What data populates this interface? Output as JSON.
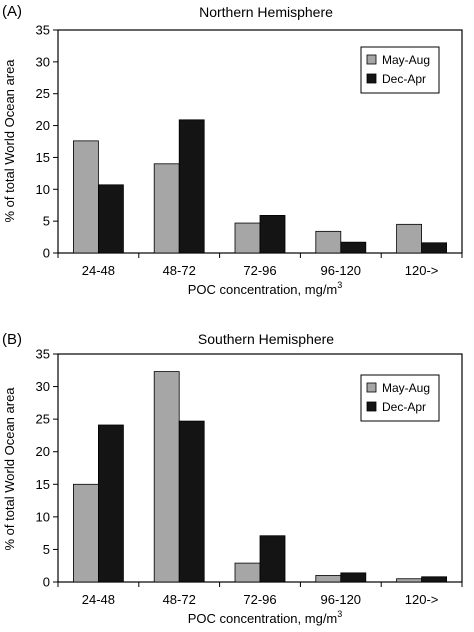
{
  "colors": {
    "may_aug": "#a6a6a6",
    "dec_apr": "#141414",
    "axis": "#000000"
  },
  "chart_data": [
    {
      "type": "bar",
      "panel_label": "(A)",
      "title": "Northern Hemisphere",
      "xlabel": "POC concentration, mg/m",
      "xlabel_sup": "3",
      "ylabel": "% of total World Ocean area",
      "ylim": [
        0,
        35
      ],
      "yticks": [
        "0",
        "5",
        "10",
        "15",
        "20",
        "25",
        "30",
        "35"
      ],
      "categories": [
        "24-48",
        "48-72",
        "72-96",
        "96-120",
        "120->"
      ],
      "series": [
        {
          "name": "May-Aug",
          "values": [
            17.6,
            14.0,
            4.7,
            3.4,
            4.5
          ]
        },
        {
          "name": "Dec-Apr",
          "values": [
            10.7,
            20.9,
            5.9,
            1.7,
            1.6
          ]
        }
      ],
      "legend": "top-right"
    },
    {
      "type": "bar",
      "panel_label": "(B)",
      "title": "Southern Hemisphere",
      "xlabel": "POC concentration, mg/m",
      "xlabel_sup": "3",
      "ylabel": "% of total World Ocean area",
      "ylim": [
        0,
        35
      ],
      "yticks": [
        "0",
        "5",
        "10",
        "15",
        "20",
        "25",
        "30",
        "35"
      ],
      "categories": [
        "24-48",
        "48-72",
        "72-96",
        "96-120",
        "120->"
      ],
      "series": [
        {
          "name": "May-Aug",
          "values": [
            15.0,
            32.3,
            2.9,
            1.0,
            0.5
          ]
        },
        {
          "name": "Dec-Apr",
          "values": [
            24.1,
            24.7,
            7.1,
            1.4,
            0.8
          ]
        }
      ],
      "legend": "top-right"
    }
  ]
}
